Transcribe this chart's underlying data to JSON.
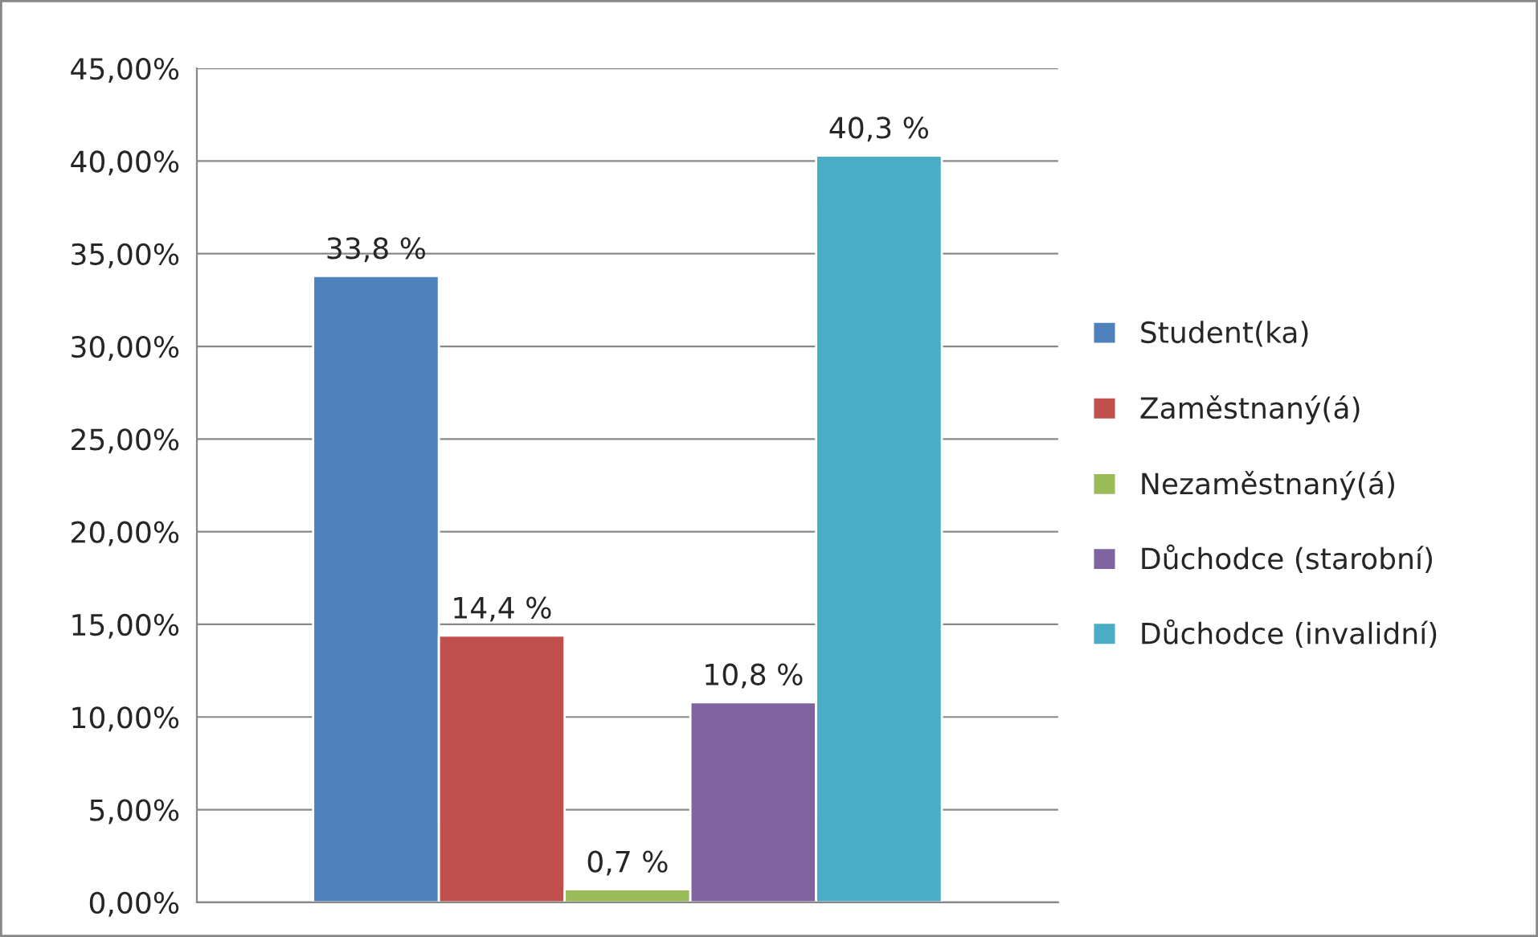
{
  "chart_data": {
    "type": "bar",
    "categories": [
      null
    ],
    "series": [
      {
        "name": "Student(ka)",
        "color": "#4f81bd",
        "values": [
          33.8
        ],
        "value_labels": [
          "33,8 %"
        ]
      },
      {
        "name": "Zaměstnaný(á)",
        "color": "#c0504d",
        "values": [
          14.4
        ],
        "value_labels": [
          "14,4 %"
        ]
      },
      {
        "name": "Nezaměstnaný(á)",
        "color": "#9bbb59",
        "values": [
          0.7
        ],
        "value_labels": [
          "0,7 %"
        ]
      },
      {
        "name": "Důchodce (starobní)",
        "color": "#8064a2",
        "values": [
          10.8
        ],
        "value_labels": [
          "10,8 %"
        ]
      },
      {
        "name": "Důchodce (invalidní)",
        "color": "#4bacc6",
        "values": [
          40.3
        ],
        "value_labels": [
          "40,3 %"
        ]
      }
    ],
    "ylim": [
      0,
      45
    ],
    "yticks": [
      {
        "value": 0,
        "label": "0,00%"
      },
      {
        "value": 5,
        "label": "5,00%"
      },
      {
        "value": 10,
        "label": "10,00%"
      },
      {
        "value": 15,
        "label": "15,00%"
      },
      {
        "value": 20,
        "label": "20,00%"
      },
      {
        "value": 25,
        "label": "25,00%"
      },
      {
        "value": 30,
        "label": "30,00%"
      },
      {
        "value": 35,
        "label": "35,00%"
      },
      {
        "value": 40,
        "label": "40,00%"
      },
      {
        "value": 45,
        "label": "45,00%"
      }
    ],
    "grid": "y",
    "legend": "right"
  }
}
